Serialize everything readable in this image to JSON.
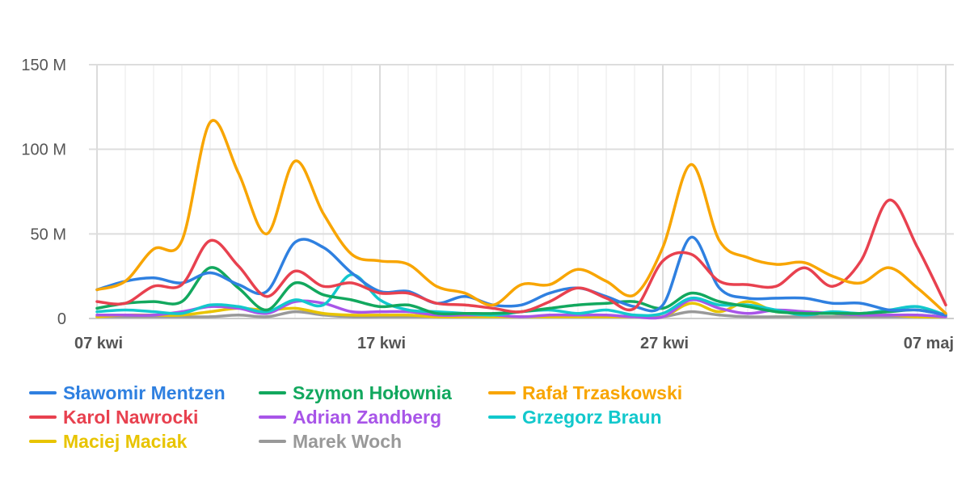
{
  "chart_data": {
    "type": "line",
    "title": "",
    "xlabel": "",
    "ylabel": "",
    "ylim": [
      0,
      150
    ],
    "y_unit_suffix": " M",
    "y_ticks": [
      0,
      50,
      100,
      150
    ],
    "y_tick_labels": [
      "0",
      "50 M",
      "100 M",
      "150 M"
    ],
    "x_ticks": [
      0,
      10,
      20,
      30
    ],
    "x_tick_labels": [
      "07 kwi",
      "17 kwi",
      "27 kwi",
      "07 maj"
    ],
    "x_count": 31,
    "grid": true,
    "legend_position": "bottom",
    "series": [
      {
        "name": "Sławomir Mentzen",
        "color": "#2f80e0",
        "values": [
          17,
          22,
          24,
          21,
          27,
          20,
          16,
          45,
          42,
          27,
          16,
          16,
          9,
          13,
          8,
          8,
          15,
          18,
          13,
          7,
          8,
          48,
          18,
          12,
          12,
          12,
          9,
          9,
          5,
          5,
          2
        ]
      },
      {
        "name": "Szymon Hołownia",
        "color": "#12a85e",
        "values": [
          6,
          9,
          10,
          10,
          30,
          18,
          5,
          21,
          14,
          11,
          7,
          8,
          3,
          3,
          3,
          4,
          6,
          8,
          9,
          10,
          6,
          15,
          10,
          7,
          4,
          3,
          3,
          3,
          4,
          5,
          2
        ]
      },
      {
        "name": "Rafał Trzaskowski",
        "color": "#f8a500",
        "values": [
          17,
          22,
          41,
          46,
          116,
          86,
          50,
          93,
          62,
          38,
          34,
          32,
          19,
          15,
          8,
          20,
          20,
          29,
          22,
          14,
          42,
          91,
          46,
          36,
          32,
          33,
          25,
          21,
          30,
          18,
          3
        ]
      },
      {
        "name": "Karol Nawrocki",
        "color": "#e8414f",
        "values": [
          10,
          9,
          19,
          20,
          46,
          31,
          13,
          28,
          19,
          21,
          15,
          15,
          9,
          8,
          6,
          4,
          10,
          18,
          12,
          6,
          34,
          38,
          22,
          20,
          19,
          30,
          19,
          34,
          70,
          42,
          8
        ]
      },
      {
        "name": "Adrian Zandberg",
        "color": "#a855e8",
        "values": [
          2,
          2,
          2,
          4,
          7,
          6,
          3,
          10,
          9,
          4,
          4,
          4,
          2,
          2,
          2,
          1,
          2,
          2,
          2,
          1,
          1,
          11,
          6,
          3,
          5,
          4,
          3,
          2,
          2,
          2,
          1
        ]
      },
      {
        "name": "Grzegorz Braun",
        "color": "#12c8cc",
        "values": [
          4,
          5,
          4,
          3,
          8,
          7,
          4,
          11,
          8,
          26,
          11,
          5,
          4,
          3,
          2,
          4,
          5,
          3,
          5,
          2,
          3,
          12,
          8,
          8,
          5,
          2,
          4,
          3,
          5,
          7,
          2
        ]
      },
      {
        "name": "Maciej Maciak",
        "color": "#e8c400",
        "values": [
          1,
          2,
          2,
          2,
          4,
          6,
          5,
          6,
          3,
          2,
          2,
          2,
          1,
          1,
          1,
          1,
          1,
          1,
          1,
          1,
          1,
          9,
          4,
          10,
          4,
          4,
          3,
          2,
          2,
          1,
          1
        ]
      },
      {
        "name": "Marek Woch",
        "color": "#999999",
        "values": [
          1,
          1,
          1,
          1,
          1,
          2,
          1,
          4,
          2,
          1,
          1,
          1,
          1,
          1,
          1,
          1,
          1,
          1,
          1,
          1,
          1,
          4,
          2,
          1,
          1,
          1,
          1,
          1,
          1,
          1,
          1
        ]
      }
    ]
  }
}
